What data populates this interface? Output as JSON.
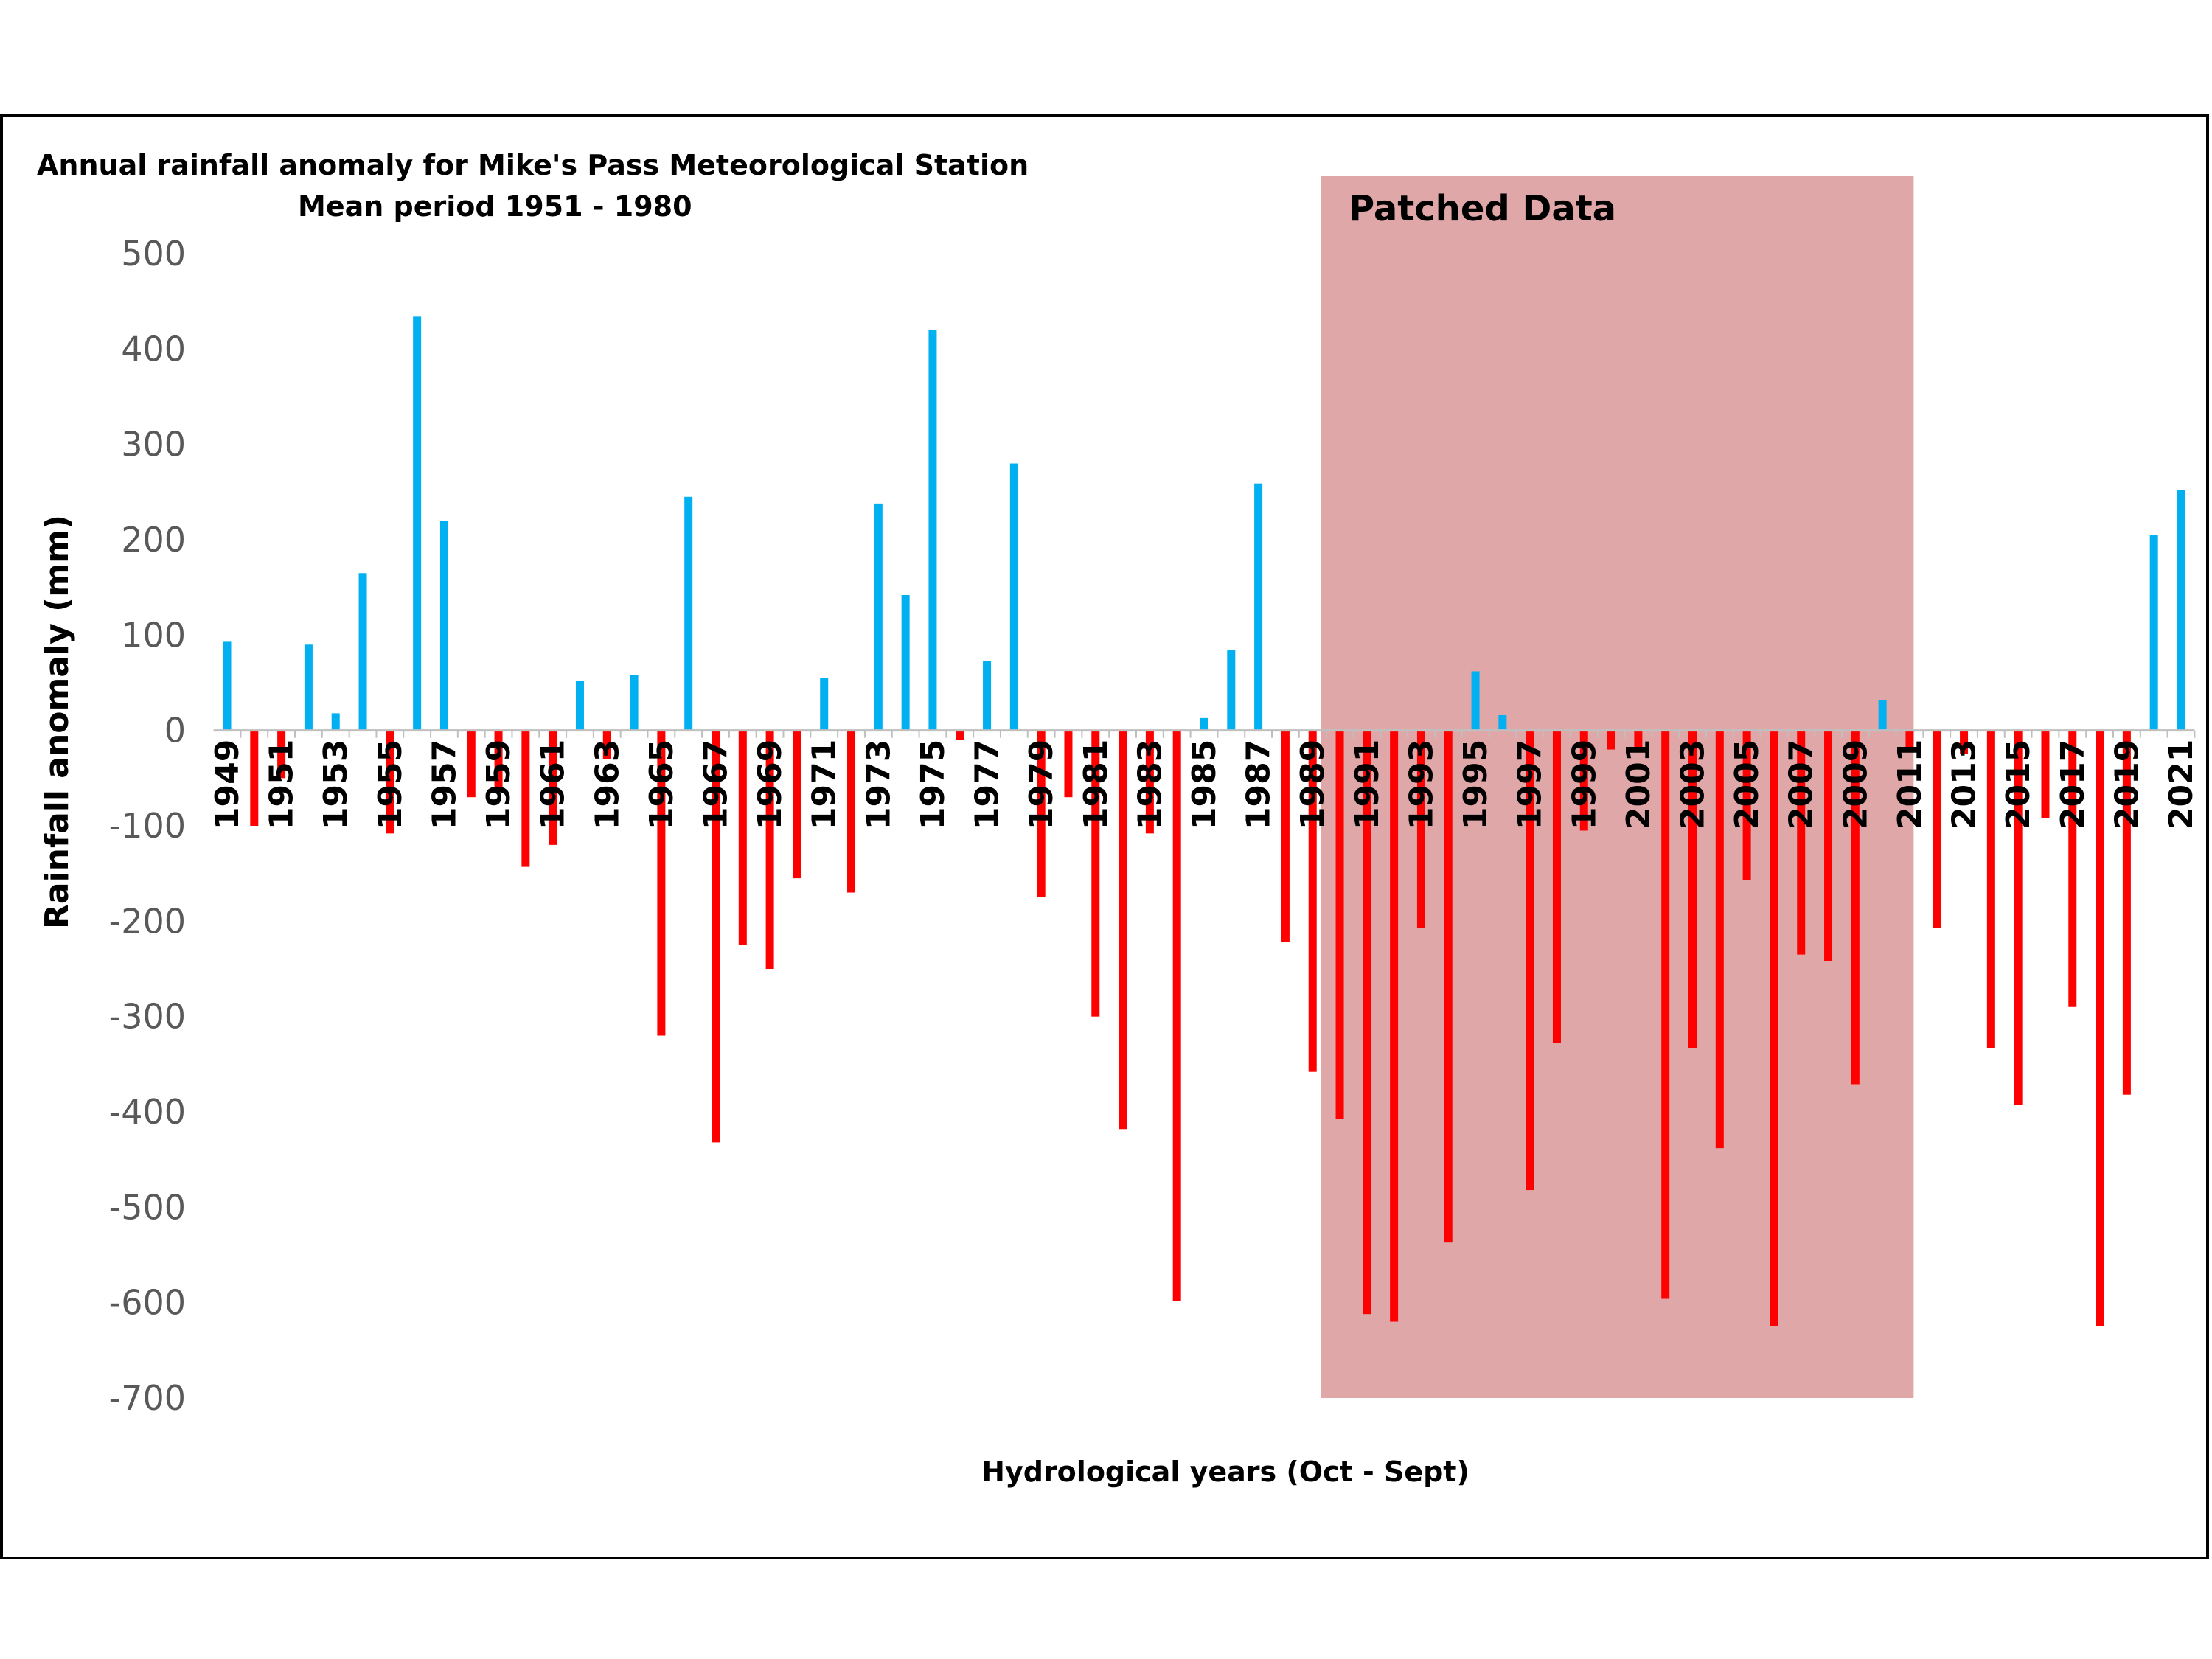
{
  "chart_data": {
    "type": "bar",
    "title": "Annual rainfall anomaly for Mike's Pass Meteorological Station",
    "subtitle": "Mean period 1951 - 1980",
    "xlabel": "Hydrological years (Oct - Sept)",
    "ylabel": "Rainfall anomaly (mm)",
    "ylim": [
      -700,
      500
    ],
    "yticks": [
      "500",
      "400",
      "300",
      "200",
      "100",
      "0",
      "-100",
      "-200",
      "-300",
      "-400",
      "-500",
      "-600",
      "-700"
    ],
    "ytick_values": [
      500,
      400,
      300,
      200,
      100,
      0,
      -100,
      -200,
      -300,
      -400,
      -500,
      -600,
      -700
    ],
    "colors": {
      "positive": "#00b0f0",
      "negative": "#ff0000",
      "frame": "#000000"
    },
    "grid": false,
    "annotation": {
      "label": "Patched Data",
      "year_start": 1990,
      "year_end": 2011,
      "color": "#c05050",
      "opacity": 0.5
    },
    "categories": [
      1949,
      1950,
      1951,
      1952,
      1953,
      1954,
      1955,
      1956,
      1957,
      1958,
      1959,
      1960,
      1961,
      1962,
      1963,
      1964,
      1965,
      1966,
      1967,
      1968,
      1969,
      1970,
      1971,
      1972,
      1973,
      1974,
      1975,
      1976,
      1977,
      1978,
      1979,
      1980,
      1981,
      1982,
      1983,
      1984,
      1985,
      1986,
      1987,
      1988,
      1989,
      1990,
      1991,
      1992,
      1993,
      1994,
      1995,
      1996,
      1997,
      1998,
      1999,
      2000,
      2001,
      2002,
      2003,
      2004,
      2005,
      2006,
      2007,
      2008,
      2009,
      2010,
      2011,
      2012,
      2013,
      2014,
      2015,
      2016,
      2017,
      2018,
      2019,
      2020,
      2021
    ],
    "tick_labels": [
      "1949",
      "1951",
      "1953",
      "1955",
      "1957",
      "1959",
      "1961",
      "1963",
      "1965",
      "1967",
      "1969",
      "1971",
      "1973",
      "1975",
      "1977",
      "1979",
      "1981",
      "1983",
      "1985",
      "1987",
      "1989",
      "1991",
      "1993",
      "1995",
      "1997",
      "1999",
      "2001",
      "2003",
      "2005",
      "2007",
      "2009",
      "2011",
      "2013",
      "2015",
      "2017",
      "2019",
      "2021"
    ],
    "values": [
      93,
      -100,
      -50,
      90,
      18,
      165,
      -108,
      434,
      220,
      -70,
      -60,
      -143,
      -120,
      52,
      -30,
      58,
      -320,
      245,
      -432,
      -225,
      -250,
      -155,
      55,
      -170,
      238,
      142,
      420,
      -10,
      73,
      280,
      -175,
      -70,
      -300,
      -418,
      -108,
      -598,
      13,
      84,
      259,
      -222,
      -358,
      -407,
      -612,
      -620,
      -207,
      -537,
      62,
      16,
      -482,
      -328,
      -105,
      -20,
      -20,
      -596,
      -333,
      -438,
      -157,
      -625,
      -235,
      -242,
      -371,
      32,
      -20,
      -207,
      -25,
      -333,
      -393,
      -92,
      -290,
      -625,
      -382,
      205,
      252
    ]
  }
}
